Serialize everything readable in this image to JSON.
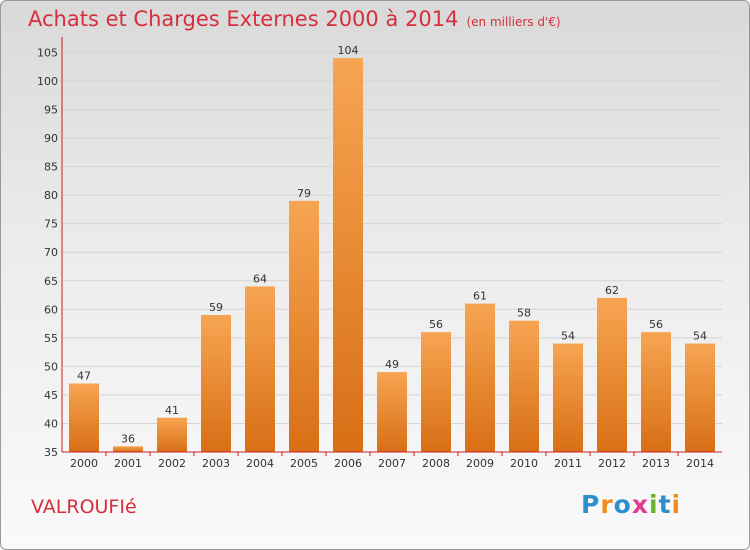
{
  "header": {
    "title": "Achats et Charges Externes 2000 à 2014",
    "subtitle": "(en milliers d'€)"
  },
  "footer": {
    "place": "VALROUFIé",
    "logo_letters": [
      "P",
      "r",
      "o",
      "x",
      "i",
      "t",
      "i"
    ],
    "logo_colors": [
      "#2e8fcf",
      "#f28c1e",
      "#2e8fcf",
      "#e23b8f",
      "#6ab42d",
      "#2e8fcf",
      "#f28c1e"
    ]
  },
  "colors": {
    "title": "#d52f3c",
    "bar_light": "#f7a552",
    "bar_dark": "#d86f16",
    "axis": "#c81e28",
    "grid": "#d4d4d4"
  },
  "chart_data": {
    "type": "bar",
    "categories": [
      "2000",
      "2001",
      "2002",
      "2003",
      "2004",
      "2005",
      "2006",
      "2007",
      "2008",
      "2009",
      "2010",
      "2011",
      "2012",
      "2013",
      "2014"
    ],
    "values": [
      47,
      36,
      41,
      59,
      64,
      79,
      104,
      49,
      56,
      61,
      58,
      54,
      62,
      56,
      54
    ],
    "ylim": [
      35,
      107
    ],
    "yticks": [
      35,
      40,
      45,
      50,
      55,
      60,
      65,
      70,
      75,
      80,
      85,
      90,
      95,
      100,
      105
    ],
    "grid": true,
    "title": "Achats et Charges Externes 2000 à 2014",
    "subtitle": "(en milliers d'€)",
    "xlabel": "",
    "ylabel": ""
  }
}
